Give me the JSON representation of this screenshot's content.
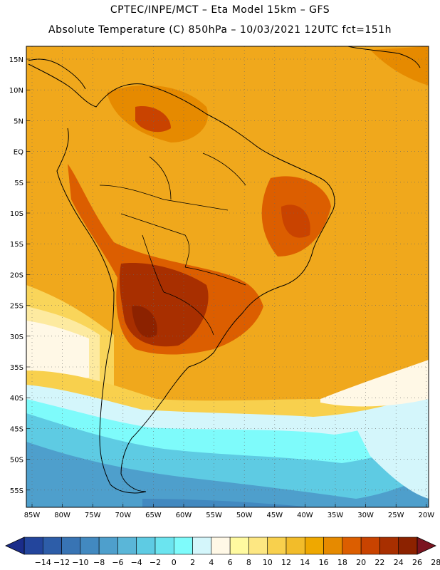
{
  "header": {
    "line1": "CPTEC/INPE/MCT –  Eta Model 15km – GFS",
    "line2": "Absolute Temperature (C) 850hPa – 10/03/2021 12UTC fct=151h"
  },
  "map": {
    "lat_labels": [
      "15N",
      "10N",
      "5N",
      "EQ",
      "5S",
      "10S",
      "15S",
      "20S",
      "25S",
      "30S",
      "35S",
      "40S",
      "45S",
      "50S",
      "55S"
    ],
    "lon_labels": [
      "85W",
      "80W",
      "75W",
      "70W",
      "65W",
      "60W",
      "55W",
      "50W",
      "45W",
      "40W",
      "35W",
      "30W",
      "25W",
      "20W"
    ]
  },
  "colorbar": {
    "labels": [
      "-14",
      "-12",
      "-10",
      "-8",
      "-6",
      "-4",
      "-2",
      "0",
      "2",
      "4",
      "6",
      "8",
      "10",
      "12",
      "14",
      "16",
      "18",
      "20",
      "22",
      "24",
      "26",
      "28"
    ],
    "colors": [
      "#1a2c8a",
      "#23459c",
      "#2d5da8",
      "#3874b4",
      "#4289c0",
      "#4e9fcc",
      "#5ab6d8",
      "#5ecbe3",
      "#6be4ef",
      "#7efbfb",
      "#d4f6fb",
      "#fff8e6",
      "#fffaa0",
      "#fde782",
      "#f8d04d",
      "#f2bc2a",
      "#efa800",
      "#e68a00",
      "#dc5e00",
      "#c94300",
      "#a82f00",
      "#8c2200",
      "#7b1420"
    ]
  },
  "colors": {
    "ocean": "#f2a71a",
    "land_warm": "#e9960c",
    "hot": "#c9540e",
    "hottest": "#a6350b"
  }
}
